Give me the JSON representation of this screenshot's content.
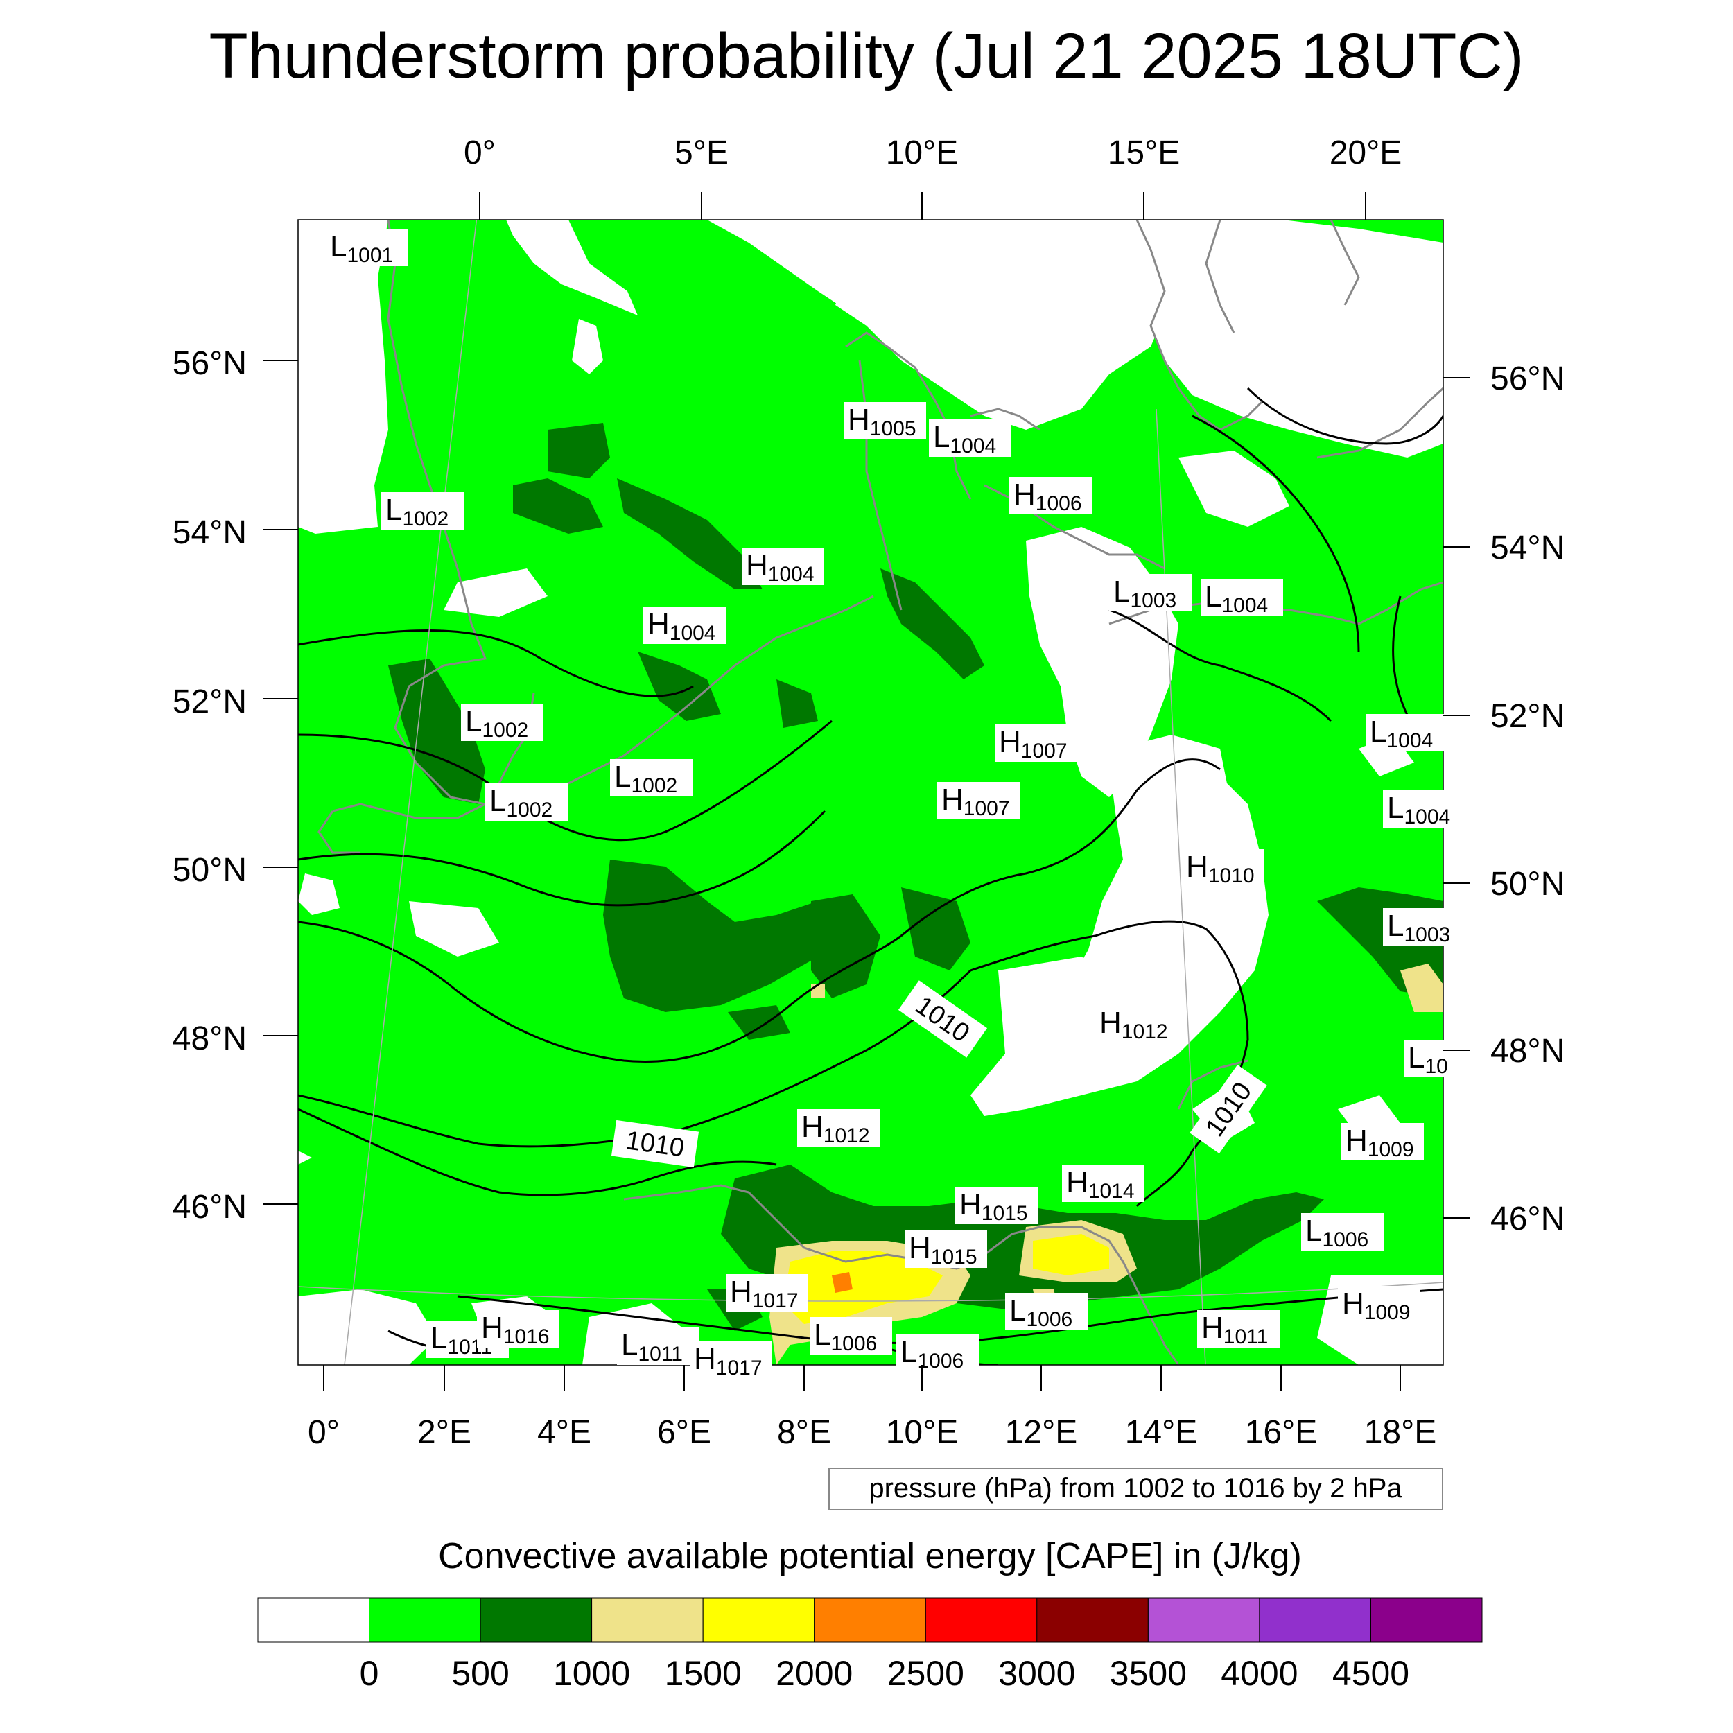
{
  "title": "Thunderstorm probability (Jul 21 2025 18UTC)",
  "top_lon_labels": [
    "0°",
    "5°E",
    "10°E",
    "15°E",
    "20°E"
  ],
  "bottom_lon_labels": [
    "0°",
    "2°E",
    "4°E",
    "6°E",
    "8°E",
    "10°E",
    "12°E",
    "14°E",
    "16°E",
    "18°E"
  ],
  "left_lat_labels": [
    "56°N",
    "54°N",
    "52°N",
    "50°N",
    "48°N",
    "46°N"
  ],
  "right_lat_labels": [
    "56°N",
    "54°N",
    "52°N",
    "50°N",
    "48°N",
    "46°N"
  ],
  "contour_info": "pressure (hPa) from 1002 to 1016 by 2 hPa",
  "isobar_labels": [
    "1010",
    "1010",
    "1010"
  ],
  "pressure_centers": [
    {
      "t": "L",
      "v": "1001"
    },
    {
      "t": "H",
      "v": "1005"
    },
    {
      "t": "L",
      "v": "1004"
    },
    {
      "t": "H",
      "v": "1006"
    },
    {
      "t": "L",
      "v": "1002"
    },
    {
      "t": "H",
      "v": "1004"
    },
    {
      "t": "H",
      "v": "1004"
    },
    {
      "t": "L",
      "v": "1003"
    },
    {
      "t": "L",
      "v": "1004"
    },
    {
      "t": "L",
      "v": "1002"
    },
    {
      "t": "L",
      "v": "1002"
    },
    {
      "t": "L",
      "v": "1002"
    },
    {
      "t": "H",
      "v": "1007"
    },
    {
      "t": "H",
      "v": "1007"
    },
    {
      "t": "L",
      "v": "1004"
    },
    {
      "t": "L",
      "v": "1004"
    },
    {
      "t": "H",
      "v": "1010"
    },
    {
      "t": "L",
      "v": "1003"
    },
    {
      "t": "H",
      "v": "1012"
    },
    {
      "t": "L",
      "v": "10"
    },
    {
      "t": "H",
      "v": "1012"
    },
    {
      "t": "H",
      "v": "1009"
    },
    {
      "t": "H",
      "v": "1014"
    },
    {
      "t": "H",
      "v": "1015"
    },
    {
      "t": "L",
      "v": "1006"
    },
    {
      "t": "H",
      "v": "1015"
    },
    {
      "t": "H",
      "v": "1017"
    },
    {
      "t": "L",
      "v": "1006"
    },
    {
      "t": "H",
      "v": "1009"
    },
    {
      "t": "L",
      "v": "1011"
    },
    {
      "t": "H",
      "v": "1016"
    },
    {
      "t": "L",
      "v": "1011"
    },
    {
      "t": "H",
      "v": "1017"
    },
    {
      "t": "L",
      "v": "1006"
    },
    {
      "t": "L",
      "v": "1006"
    },
    {
      "t": "H",
      "v": "1011"
    }
  ],
  "colorbar": {
    "title": "Convective available potential energy [CAPE] in (J/kg)",
    "colors": [
      "#ffffff",
      "#00ff00",
      "#007800",
      "#efe38a",
      "#ffff00",
      "#ff7f00",
      "#ff0000",
      "#8b0000",
      "#b452d6",
      "#9130cc",
      "#8b008b"
    ],
    "labels": [
      "0",
      "500",
      "1000",
      "1500",
      "2000",
      "2500",
      "3000",
      "3500",
      "4000",
      "4500"
    ]
  },
  "colors": {
    "green": "#00ff00",
    "dark_green": "#007800",
    "khaki": "#efe38a",
    "yellow": "#ffff00",
    "orange": "#ff7f00",
    "coast": "#888888",
    "isobar": "#000000"
  }
}
